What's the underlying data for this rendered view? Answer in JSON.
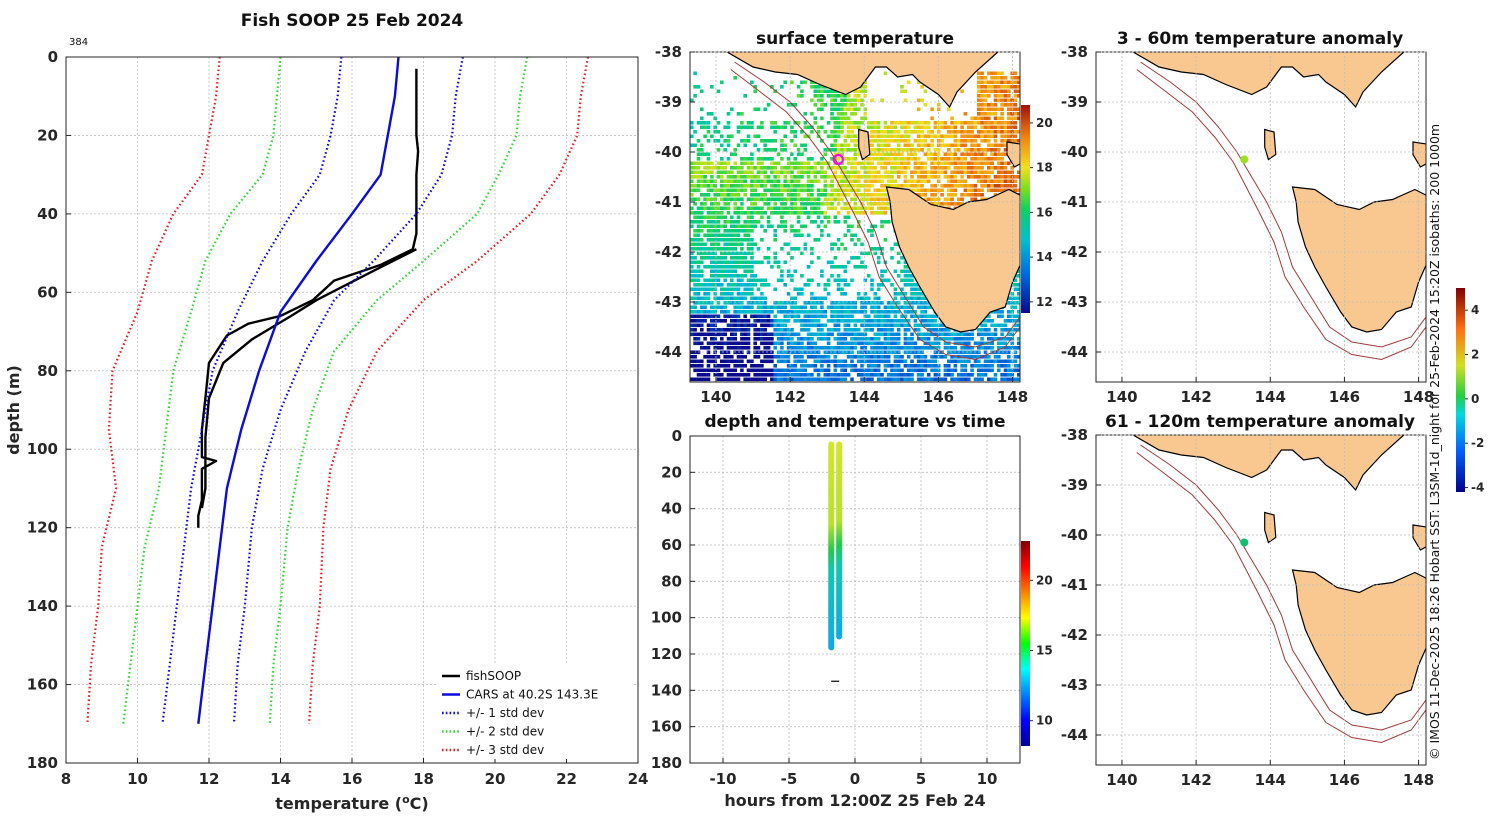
{
  "profile": {
    "title": "Fish SOOP 25 Feb 2024",
    "id_label": "384",
    "xlabel_prefix": "temperature (",
    "xlabel_sup": "o",
    "xlabel_suffix": "C)",
    "ylabel": "depth (m)"
  },
  "surface": {
    "title": "surface temperature"
  },
  "anom1": {
    "title": "3 - 60m temperature anomaly"
  },
  "anom2": {
    "title": "61 - 120m temperature anomaly"
  },
  "timeplot": {
    "title": "depth and temperature vs time",
    "xlabel": "hours from 12:00Z 25 Feb 24"
  },
  "credit": "© IMOS 11-Dec-2025 18:26 Hobart SST: L3SM-1d_night for 25-Feb-2024 15:20Z isobaths: 200  1000m",
  "colors": {
    "black": "#000000",
    "blue": "#0b0bdc",
    "green": "#33d433",
    "red": "#e62020",
    "land": "#f9c891",
    "marker": "#ff00ff"
  },
  "chart_data": [
    {
      "type": "line",
      "name": "temperature-profile",
      "title": "Fish SOOP 25 Feb 2024",
      "xlabel": "temperature (oC)",
      "ylabel": "depth (m)",
      "xlim": [
        8,
        24
      ],
      "ylim": [
        180,
        0
      ],
      "xticks": [
        "8",
        "10",
        "12",
        "14",
        "16",
        "18",
        "20",
        "22",
        "24"
      ],
      "yticks": [
        "0",
        "20",
        "40",
        "60",
        "80",
        "100",
        "120",
        "140",
        "160",
        "180"
      ],
      "grid": true,
      "legend_position": "bottom-right",
      "series": [
        {
          "name": "fishSOOP",
          "color": "#000000",
          "style": "solid",
          "points": [
            [
              17.8,
              3
            ],
            [
              17.8,
              20
            ],
            [
              17.85,
              24
            ],
            [
              17.8,
              30
            ],
            [
              17.8,
              45
            ],
            [
              17.7,
              49
            ],
            [
              16.8,
              53
            ],
            [
              15.5,
              57
            ],
            [
              14.9,
              62
            ],
            [
              14.0,
              66
            ],
            [
              13.1,
              68
            ],
            [
              12.5,
              71
            ],
            [
              12.0,
              78
            ],
            [
              11.9,
              87
            ],
            [
              11.8,
              95
            ],
            [
              11.8,
              102
            ],
            [
              12.2,
              103
            ],
            [
              11.8,
              105
            ],
            [
              11.8,
              113
            ],
            [
              11.7,
              117
            ],
            [
              11.7,
              120
            ]
          ]
        },
        {
          "name": "fishSOOP",
          "color": "#000000",
          "style": "solid",
          "points": [
            [
              17.8,
              49
            ],
            [
              16.5,
              55
            ],
            [
              15.0,
              62
            ],
            [
              14.3,
              66
            ],
            [
              13.2,
              72
            ],
            [
              12.4,
              78
            ],
            [
              12.0,
              87
            ],
            [
              11.9,
              97
            ],
            [
              11.9,
              110
            ],
            [
              11.8,
              115
            ]
          ]
        },
        {
          "name": "CARS at 40.2S 143.3E",
          "color": "#0b0bdc",
          "style": "solid",
          "points": [
            [
              17.3,
              0
            ],
            [
              17.2,
              10
            ],
            [
              17.0,
              20
            ],
            [
              16.8,
              30
            ],
            [
              16.0,
              40
            ],
            [
              15.0,
              52
            ],
            [
              14.0,
              65
            ],
            [
              13.4,
              80
            ],
            [
              12.9,
              95
            ],
            [
              12.5,
              110
            ],
            [
              12.3,
              125
            ],
            [
              12.1,
              140
            ],
            [
              11.9,
              155
            ],
            [
              11.7,
              170
            ]
          ]
        },
        {
          "name": "+/- 1 std dev",
          "color": "#0b0bdc",
          "style": "dotted",
          "points": [
            [
              15.7,
              0
            ],
            [
              15.6,
              10
            ],
            [
              15.4,
              20
            ],
            [
              15.1,
              30
            ],
            [
              14.3,
              40
            ],
            [
              13.5,
              52
            ],
            [
              12.8,
              65
            ],
            [
              12.1,
              80
            ],
            [
              11.8,
              95
            ],
            [
              11.5,
              110
            ],
            [
              11.3,
              125
            ],
            [
              11.1,
              140
            ],
            [
              10.9,
              155
            ],
            [
              10.7,
              170
            ]
          ]
        },
        {
          "name": "+/- 1 std dev",
          "color": "#0b0bdc",
          "style": "dotted",
          "points": [
            [
              19.1,
              0
            ],
            [
              18.9,
              10
            ],
            [
              18.8,
              20
            ],
            [
              18.5,
              30
            ],
            [
              17.8,
              40
            ],
            [
              16.6,
              52
            ],
            [
              15.5,
              62
            ],
            [
              14.7,
              75
            ],
            [
              14.0,
              90
            ],
            [
              13.5,
              105
            ],
            [
              13.2,
              120
            ],
            [
              13.0,
              140
            ],
            [
              12.8,
              155
            ],
            [
              12.7,
              170
            ]
          ]
        },
        {
          "name": "+/- 2 std dev",
          "color": "#33d433",
          "style": "dotted",
          "points": [
            [
              14.0,
              0
            ],
            [
              13.9,
              10
            ],
            [
              13.8,
              20
            ],
            [
              13.5,
              30
            ],
            [
              12.6,
              40
            ],
            [
              11.9,
              52
            ],
            [
              11.5,
              65
            ],
            [
              11.0,
              80
            ],
            [
              10.8,
              95
            ],
            [
              10.6,
              110
            ],
            [
              10.2,
              125
            ],
            [
              10.0,
              140
            ],
            [
              9.8,
              155
            ],
            [
              9.6,
              170
            ]
          ]
        },
        {
          "name": "+/- 2 std dev",
          "color": "#33d433",
          "style": "dotted",
          "points": [
            [
              20.9,
              0
            ],
            [
              20.7,
              10
            ],
            [
              20.6,
              20
            ],
            [
              20.1,
              30
            ],
            [
              19.5,
              40
            ],
            [
              18.0,
              52
            ],
            [
              16.7,
              62
            ],
            [
              15.5,
              75
            ],
            [
              14.9,
              90
            ],
            [
              14.5,
              105
            ],
            [
              14.2,
              120
            ],
            [
              14.0,
              140
            ],
            [
              13.8,
              155
            ],
            [
              13.7,
              170
            ]
          ]
        },
        {
          "name": "+/- 3 std dev",
          "color": "#e62020",
          "style": "dotted",
          "points": [
            [
              12.3,
              0
            ],
            [
              12.2,
              10
            ],
            [
              12.0,
              20
            ],
            [
              11.8,
              30
            ],
            [
              11.0,
              40
            ],
            [
              10.4,
              52
            ],
            [
              10.0,
              65
            ],
            [
              9.3,
              80
            ],
            [
              9.2,
              95
            ],
            [
              9.4,
              110
            ],
            [
              9.0,
              125
            ],
            [
              8.9,
              140
            ],
            [
              8.7,
              155
            ],
            [
              8.6,
              170
            ]
          ]
        },
        {
          "name": "+/- 3 std dev",
          "color": "#e62020",
          "style": "dotted",
          "points": [
            [
              22.6,
              0
            ],
            [
              22.4,
              10
            ],
            [
              22.3,
              20
            ],
            [
              21.8,
              30
            ],
            [
              21.0,
              40
            ],
            [
              19.5,
              52
            ],
            [
              18.0,
              62
            ],
            [
              16.7,
              75
            ],
            [
              15.9,
              90
            ],
            [
              15.4,
              105
            ],
            [
              15.2,
              120
            ],
            [
              15.1,
              140
            ],
            [
              14.9,
              155
            ],
            [
              14.8,
              170
            ]
          ]
        }
      ]
    },
    {
      "type": "heatmap",
      "name": "surface-temperature-map",
      "title": "surface temperature",
      "xlim": [
        139.3,
        148.2
      ],
      "ylim": [
        -44.6,
        -38
      ],
      "xticks": [
        "140",
        "142",
        "144",
        "146",
        "148"
      ],
      "yticks": [
        "-38",
        "-39",
        "-40",
        "-41",
        "-42",
        "-43",
        "-44"
      ],
      "colorbar": {
        "range": [
          11.5,
          20.8
        ],
        "ticks": [
          "20",
          "18",
          "16",
          "14",
          "12"
        ]
      },
      "marker": {
        "lon": 143.3,
        "lat": -40.15
      }
    },
    {
      "type": "scatter",
      "name": "depth-temperature-vs-time",
      "title": "depth and temperature vs time",
      "xlabel": "hours from 12:00Z 25 Feb 24",
      "xlim": [
        -12.5,
        12.5
      ],
      "ylim": [
        180,
        0
      ],
      "xticks": [
        "-10",
        "-5",
        "0",
        "5",
        "10"
      ],
      "yticks": [
        "0",
        "20",
        "40",
        "60",
        "80",
        "100",
        "120",
        "140",
        "160",
        "180"
      ],
      "colorbar": {
        "range": [
          8.2,
          22.8
        ],
        "ticks": [
          "20",
          "15",
          "10"
        ]
      },
      "tracks": [
        {
          "hour": -1.8,
          "depth_top": 3,
          "depth_bottom": 118
        },
        {
          "hour": -1.2,
          "depth_top": 3,
          "depth_bottom": 112
        }
      ],
      "extra_mark": {
        "hour": -1.5,
        "depth": 135
      }
    },
    {
      "type": "scatter",
      "name": "anomaly-3-60m-map",
      "title": "3 - 60m temperature anomaly",
      "xlim": [
        139.3,
        148.2
      ],
      "ylim": [
        -44.6,
        -38
      ],
      "xticks": [
        "140",
        "142",
        "144",
        "146",
        "148"
      ],
      "yticks": [
        "-38",
        "-39",
        "-40",
        "-41",
        "-42",
        "-43",
        "-44"
      ],
      "point": {
        "lon": 143.3,
        "lat": -40.15,
        "anomaly": 0.8
      },
      "colorbar": {
        "range": [
          -4.2,
          5
        ],
        "ticks": [
          "4",
          "2",
          "0",
          "-2",
          "-4"
        ]
      }
    },
    {
      "type": "scatter",
      "name": "anomaly-61-120m-map",
      "title": "61 - 120m temperature anomaly",
      "xlim": [
        139.3,
        148.2
      ],
      "ylim": [
        -44.6,
        -38
      ],
      "xticks": [
        "140",
        "142",
        "144",
        "146",
        "148"
      ],
      "yticks": [
        "-38",
        "-39",
        "-40",
        "-41",
        "-42",
        "-43",
        "-44"
      ],
      "point": {
        "lon": 143.3,
        "lat": -40.15,
        "anomaly": -0.3
      }
    }
  ]
}
